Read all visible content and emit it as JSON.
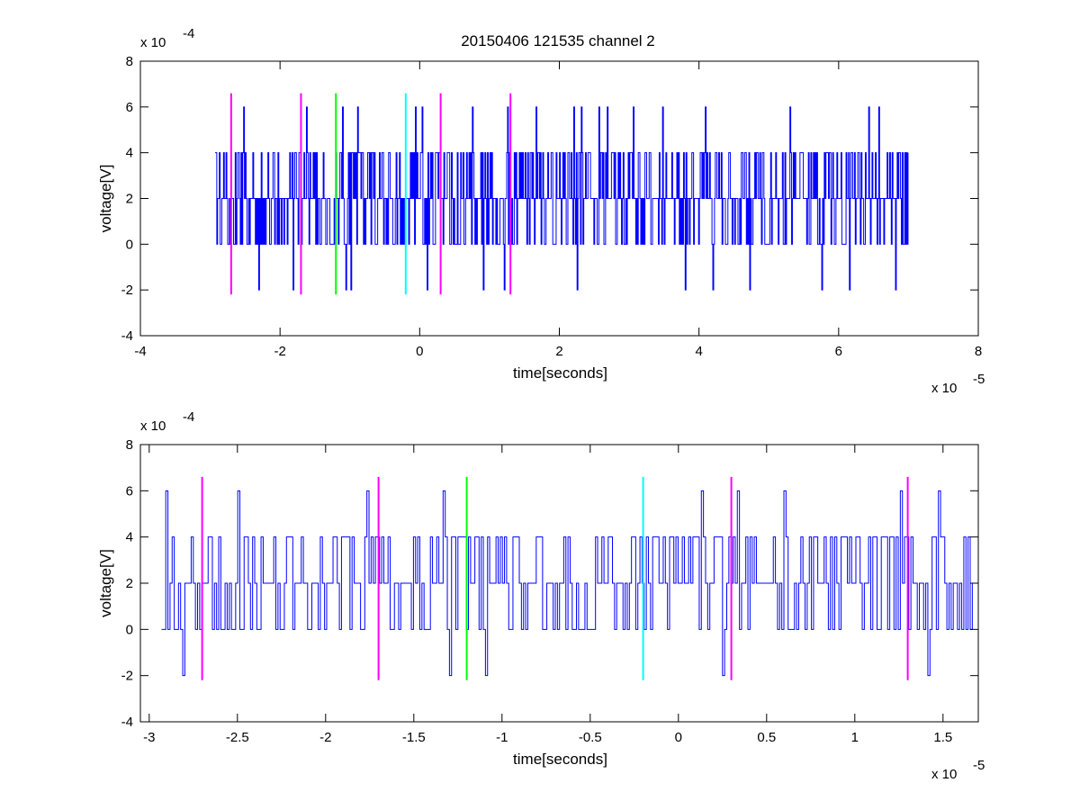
{
  "figure": {
    "title": "20150406 121535 channel 2",
    "background": "#ffffff"
  },
  "chart_data": [
    {
      "type": "line",
      "title": "20150406 121535 channel 2",
      "xlabel": "time[seconds]",
      "ylabel": "voltage[V]",
      "x_multiplier_label": "x 10",
      "x_multiplier_exp": "-5",
      "y_multiplier_label": "x 10",
      "y_multiplier_exp": "-4",
      "xlim": [
        -4,
        8
      ],
      "ylim": [
        -4,
        8
      ],
      "xticks": [
        -4,
        -2,
        0,
        2,
        4,
        6,
        8
      ],
      "yticks": [
        -4,
        -2,
        0,
        2,
        4,
        6,
        8
      ],
      "xtick_labels": [
        "-4",
        "-2",
        "0",
        "2",
        "4",
        "6",
        "8"
      ],
      "ytick_labels": [
        "-4",
        "-2",
        "0",
        "2",
        "4",
        "6",
        "8"
      ],
      "grid": false,
      "series": [
        {
          "color": "#0000ff",
          "x_range": [
            -2.93,
            7.0
          ],
          "levels": [
            -2,
            0,
            2,
            4,
            6
          ],
          "baseline": 2,
          "note": "quantized noisy signal, steps of 2 between -2 and 6"
        }
      ],
      "markers": [
        {
          "x": -2.7,
          "color": "#ff00ff",
          "y_range": [
            -2.2,
            6.6
          ]
        },
        {
          "x": -1.7,
          "color": "#ff00ff",
          "y_range": [
            -2.2,
            6.6
          ]
        },
        {
          "x": -1.2,
          "color": "#00ff00",
          "y_range": [
            -2.2,
            6.6
          ]
        },
        {
          "x": -0.2,
          "color": "#00ffff",
          "y_range": [
            -2.2,
            6.6
          ]
        },
        {
          "x": 0.3,
          "color": "#ff00ff",
          "y_range": [
            -2.2,
            6.6
          ]
        },
        {
          "x": 1.3,
          "color": "#ff00ff",
          "y_range": [
            -2.2,
            6.6
          ]
        }
      ]
    },
    {
      "type": "line",
      "title": "",
      "xlabel": "time[seconds]",
      "ylabel": "voltage[V]",
      "x_multiplier_label": "x 10",
      "x_multiplier_exp": "-5",
      "y_multiplier_label": "x 10",
      "y_multiplier_exp": "-4",
      "xlim": [
        -3.05,
        1.7
      ],
      "ylim": [
        -4,
        8
      ],
      "xticks": [
        -3,
        -2.5,
        -2,
        -1.5,
        -1,
        -0.5,
        0,
        0.5,
        1,
        1.5
      ],
      "yticks": [
        -4,
        -2,
        0,
        2,
        4,
        6,
        8
      ],
      "xtick_labels": [
        "-3",
        "-2.5",
        "-2",
        "-1.5",
        "-1",
        "-0.5",
        "0",
        "0.5",
        "1",
        "1.5"
      ],
      "ytick_labels": [
        "-4",
        "-2",
        "0",
        "2",
        "4",
        "6",
        "8"
      ],
      "grid": false,
      "series": [
        {
          "color": "#0000ff",
          "x_range": [
            -2.93,
            1.7
          ],
          "levels": [
            -2,
            0,
            2,
            4,
            6
          ],
          "baseline": 2,
          "note": "zoomed view of the same quantized signal"
        }
      ],
      "markers": [
        {
          "x": -2.7,
          "color": "#ff00ff",
          "y_range": [
            -2.2,
            6.6
          ]
        },
        {
          "x": -1.7,
          "color": "#ff00ff",
          "y_range": [
            -2.2,
            6.6
          ]
        },
        {
          "x": -1.2,
          "color": "#00ff00",
          "y_range": [
            -2.2,
            6.6
          ]
        },
        {
          "x": -0.2,
          "color": "#00ffff",
          "y_range": [
            -2.2,
            6.6
          ]
        },
        {
          "x": 0.3,
          "color": "#ff00ff",
          "y_range": [
            -2.2,
            6.6
          ]
        },
        {
          "x": 1.3,
          "color": "#ff00ff",
          "y_range": [
            -2.2,
            6.6
          ]
        }
      ]
    }
  ]
}
